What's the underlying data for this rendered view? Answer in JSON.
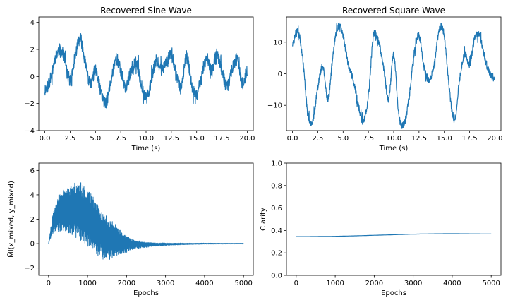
{
  "line_color": "#1f77b4",
  "chart_data": [
    {
      "type": "line",
      "title": "Recovered Sine Wave",
      "xlabel": "Time (s)",
      "ylabel": "",
      "xlim": [
        -0.6,
        20.6
      ],
      "ylim": [
        -4.0,
        4.4
      ],
      "xticks": [
        0.0,
        2.5,
        5.0,
        7.5,
        10.0,
        12.5,
        15.0,
        17.5,
        20.0
      ],
      "xtick_labels": [
        "0.0",
        "2.5",
        "5.0",
        "7.5",
        "10.0",
        "12.5",
        "15.0",
        "17.5",
        "20.0"
      ],
      "yticks": [
        -4,
        -2,
        0,
        2,
        4
      ],
      "ytick_labels": [
        "−4",
        "−2",
        "0",
        "2",
        "4"
      ],
      "series": [
        {
          "x": [
            0.0,
            0.5,
            1.0,
            1.5,
            2.0,
            2.5,
            3.0,
            3.5,
            4.0,
            4.5,
            5.0,
            5.5,
            6.0,
            6.5,
            7.0,
            7.5,
            8.0,
            8.5,
            9.0,
            9.5,
            10.0,
            10.5,
            11.0,
            11.5,
            12.0,
            12.5,
            13.0,
            13.5,
            14.0,
            14.5,
            15.0,
            15.5,
            16.0,
            16.5,
            17.0,
            17.5,
            18.0,
            18.5,
            19.0,
            19.5,
            20.0
          ],
          "y": [
            -1.0,
            -0.3,
            1.3,
            2.0,
            1.2,
            -0.3,
            1.5,
            2.8,
            1.0,
            -0.6,
            0.4,
            -1.0,
            -2.0,
            -0.5,
            1.3,
            0.4,
            -0.8,
            0.4,
            1.0,
            -0.4,
            -1.6,
            -0.4,
            1.2,
            0.5,
            1.0,
            1.8,
            0.0,
            -0.8,
            1.5,
            -0.6,
            -1.4,
            0.2,
            1.3,
            0.4,
            1.6,
            0.4,
            -0.8,
            0.6,
            1.2,
            -0.5,
            0.4
          ]
        }
      ]
    },
    {
      "type": "line",
      "title": "Recovered Square Wave",
      "xlabel": "Time (s)",
      "ylabel": "",
      "xlim": [
        -0.6,
        20.6
      ],
      "ylim": [
        -18,
        18
      ],
      "xticks": [
        0.0,
        2.5,
        5.0,
        7.5,
        10.0,
        12.5,
        15.0,
        17.5,
        20.0
      ],
      "xtick_labels": [
        "0.0",
        "2.5",
        "5.0",
        "7.5",
        "10.0",
        "12.5",
        "15.0",
        "17.5",
        "20.0"
      ],
      "yticks": [
        -10,
        0,
        10
      ],
      "ytick_labels": [
        "−10",
        "0",
        "10"
      ],
      "series": [
        {
          "x": [
            0.0,
            0.5,
            1.0,
            1.5,
            2.0,
            2.5,
            3.0,
            3.5,
            4.0,
            4.5,
            5.0,
            5.5,
            6.0,
            6.5,
            7.0,
            7.5,
            8.0,
            8.5,
            9.0,
            9.5,
            10.0,
            10.5,
            11.0,
            11.5,
            12.0,
            12.5,
            13.0,
            13.5,
            14.0,
            14.5,
            15.0,
            15.5,
            16.0,
            16.5,
            17.0,
            17.5,
            18.0,
            18.5,
            19.0,
            19.5,
            20.0
          ],
          "y": [
            9,
            14,
            5,
            -12,
            -15,
            -4,
            2,
            -8,
            6,
            15,
            12,
            3,
            -2,
            -10,
            -15,
            -7,
            12,
            10,
            2,
            -8,
            6,
            -13,
            -16,
            -8,
            6,
            12,
            2,
            -2,
            3,
            14,
            12,
            -5,
            -15,
            -2,
            6,
            3,
            11,
            12,
            5,
            0,
            -1
          ]
        }
      ]
    },
    {
      "type": "line",
      "title": "",
      "xlabel": "Epochs",
      "ylabel": "M̂I(x_mixed, y_mixed)",
      "xlim": [
        -250,
        5250
      ],
      "ylim": [
        -2.6,
        6.6
      ],
      "xticks": [
        0,
        1000,
        2000,
        3000,
        4000,
        5000
      ],
      "xtick_labels": [
        "0",
        "1000",
        "2000",
        "3000",
        "4000",
        "5000"
      ],
      "yticks": [
        -2,
        0,
        2,
        4,
        6
      ],
      "ytick_labels": [
        "−2",
        "0",
        "2",
        "4",
        "6"
      ],
      "series": [
        {
          "x": [
            0,
            100,
            200,
            300,
            400,
            500,
            600,
            700,
            800,
            900,
            1000,
            1100,
            1200,
            1300,
            1400,
            1500,
            1600,
            1700,
            1800,
            1900,
            2000,
            2200,
            2400,
            2600,
            2800,
            3000,
            3500,
            4000,
            4500,
            5000
          ],
          "y": [
            0.0,
            1.5,
            2.3,
            2.6,
            2.8,
            2.8,
            2.7,
            2.7,
            2.6,
            2.4,
            2.2,
            1.8,
            1.4,
            1.0,
            0.6,
            0.4,
            0.3,
            0.2,
            0.1,
            0.05,
            0.0,
            -0.05,
            -0.1,
            -0.08,
            -0.06,
            -0.05,
            -0.02,
            0.0,
            0.0,
            0.0
          ],
          "spread": [
            0.0,
            0.8,
            1.3,
            1.6,
            1.8,
            2.0,
            2.2,
            2.3,
            2.5,
            2.5,
            2.4,
            2.3,
            2.1,
            2.0,
            1.9,
            1.8,
            1.6,
            1.4,
            1.1,
            0.9,
            0.7,
            0.4,
            0.25,
            0.18,
            0.12,
            0.1,
            0.06,
            0.04,
            0.03,
            0.03
          ]
        }
      ]
    },
    {
      "type": "line",
      "title": "",
      "xlabel": "Epochs",
      "ylabel": "Clarity",
      "xlim": [
        -250,
        5250
      ],
      "ylim": [
        0.0,
        1.0
      ],
      "xticks": [
        0,
        1000,
        2000,
        3000,
        4000,
        5000
      ],
      "xtick_labels": [
        "0",
        "1000",
        "2000",
        "3000",
        "4000",
        "5000"
      ],
      "yticks": [
        0.0,
        0.2,
        0.4,
        0.6,
        0.8,
        1.0
      ],
      "ytick_labels": [
        "0.0",
        "0.2",
        "0.4",
        "0.6",
        "0.8",
        "1.0"
      ],
      "series": [
        {
          "x": [
            0,
            500,
            1000,
            1500,
            2000,
            2500,
            3000,
            3500,
            4000,
            4500,
            5000
          ],
          "y": [
            0.345,
            0.346,
            0.348,
            0.352,
            0.357,
            0.362,
            0.367,
            0.37,
            0.371,
            0.37,
            0.369
          ]
        }
      ]
    }
  ]
}
